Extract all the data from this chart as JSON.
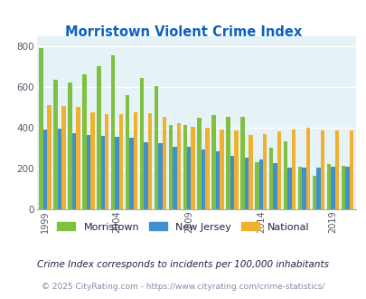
{
  "title": "Morristown Violent Crime Index",
  "title_color": "#1060c0",
  "years": [
    1999,
    2000,
    2001,
    2002,
    2003,
    2004,
    2005,
    2006,
    2007,
    2008,
    2009,
    2010,
    2011,
    2012,
    2013,
    2014,
    2015,
    2016,
    2017,
    2018,
    2019,
    2020
  ],
  "morristown": [
    790,
    635,
    620,
    660,
    700,
    755,
    560,
    645,
    605,
    415,
    415,
    450,
    460,
    455,
    455,
    230,
    300,
    335,
    210,
    165,
    220,
    215
  ],
  "new_jersey": [
    390,
    395,
    375,
    365,
    358,
    355,
    350,
    330,
    325,
    308,
    308,
    295,
    285,
    260,
    255,
    245,
    225,
    205,
    205,
    205,
    208,
    210
  ],
  "national": [
    510,
    508,
    500,
    475,
    465,
    465,
    475,
    470,
    455,
    420,
    405,
    400,
    390,
    385,
    365,
    370,
    380,
    390,
    400,
    385,
    385,
    385
  ],
  "morristown_color": "#80c040",
  "nj_color": "#4090d0",
  "national_color": "#f0b030",
  "bg_color": "#e5f2f7",
  "ylim": [
    0,
    850
  ],
  "yticks": [
    0,
    200,
    400,
    600,
    800
  ],
  "xlabel_ticks": [
    1999,
    2004,
    2009,
    2014,
    2019
  ],
  "footnote1": "Crime Index corresponds to incidents per 100,000 inhabitants",
  "footnote2": "© 2025 CityRating.com - https://www.cityrating.com/crime-statistics/",
  "footnote1_color": "#222244",
  "footnote2_color": "#8888aa",
  "legend_labels": [
    "Morristown",
    "New Jersey",
    "National"
  ],
  "legend_text_color": "#222244"
}
